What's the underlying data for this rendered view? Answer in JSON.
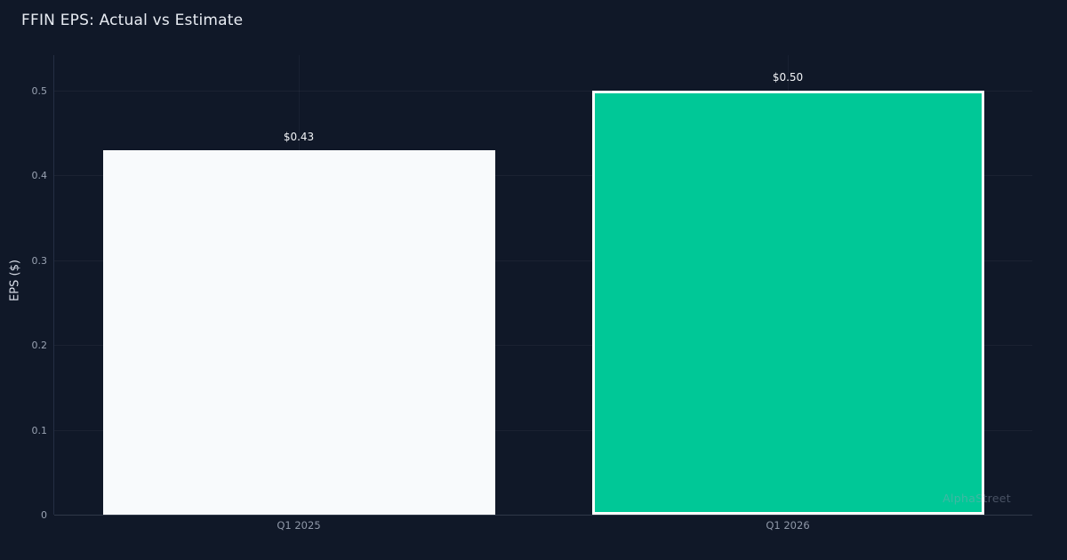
{
  "page": {
    "background_color": "#101828"
  },
  "watermark": "AlphaStreet",
  "chart_data": {
    "type": "bar",
    "title": "FFIN EPS: Actual vs Estimate",
    "xlabel": "",
    "ylabel": "EPS ($)",
    "categories": [
      "Q1 2025",
      "Q1 2026"
    ],
    "values": [
      0.43,
      0.5
    ],
    "value_labels": [
      "$0.43",
      "$0.50"
    ],
    "bar_fill_colors": [
      "#f8fafc",
      "#00c897"
    ],
    "bar_border_colors": [
      null,
      "#ffffff"
    ],
    "yticks": [
      0,
      0.1,
      0.2,
      0.3,
      0.4,
      0.5
    ],
    "ytick_labels": [
      "0",
      "0.1",
      "0.2",
      "0.3",
      "0.4",
      "0.5"
    ],
    "ylim": [
      0,
      0.542
    ],
    "grid": true,
    "legend_position": "none",
    "background_color": "#101828"
  }
}
